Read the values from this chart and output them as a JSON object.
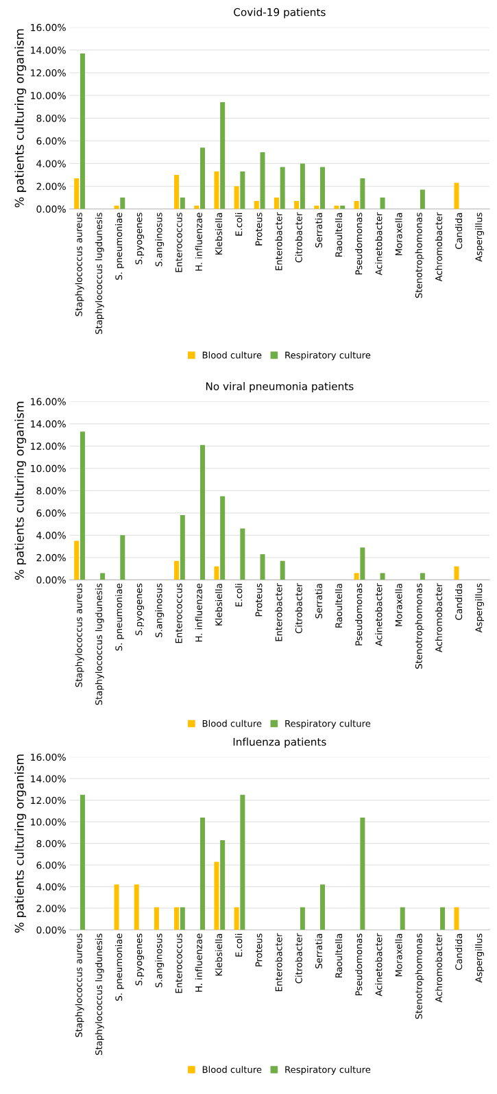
{
  "chart_data": [
    {
      "type": "bar",
      "title": "Covid-19 patients",
      "ylabel": "% patients culturing organism",
      "categories": [
        "Staphylococcus aureus",
        "Staphylococcus lugdunesis",
        "S. pneumoniae",
        "S.pyogenes",
        "S.anginosus",
        "Enterococcus",
        "H. influenzae",
        "Klebsiella",
        "E.coli",
        "Proteus",
        "Enterobacter",
        "Citrobacter",
        "Serratia",
        "Raoultella",
        "Pseudomonas",
        "Acinetobacter",
        "Moraxella",
        "Stenotrophomonas",
        "Achromobacter",
        "Candida",
        "Aspergillus"
      ],
      "series": [
        {
          "name": "Blood culture",
          "color": "#ffc000",
          "values": [
            2.7,
            0,
            0.3,
            0,
            0,
            3.0,
            0.3,
            3.3,
            2.0,
            0.7,
            1.0,
            0.7,
            0.3,
            0.3,
            0.7,
            0,
            0,
            0,
            0,
            2.3,
            0
          ]
        },
        {
          "name": "Respiratory culture",
          "color": "#70ad47",
          "values": [
            13.7,
            0,
            1.0,
            0,
            0,
            1.0,
            5.4,
            9.4,
            3.3,
            5.0,
            3.7,
            4.0,
            3.7,
            0.3,
            2.7,
            1.0,
            0,
            1.7,
            0,
            0,
            0
          ]
        }
      ],
      "ylim": [
        0,
        16
      ],
      "yticks": [
        {
          "value": 0,
          "label": "0.00%"
        },
        {
          "value": 2,
          "label": "2.00%"
        },
        {
          "value": 4,
          "label": "4.00%"
        },
        {
          "value": 6,
          "label": "6.00%"
        },
        {
          "value": 8,
          "label": "8.00%"
        },
        {
          "value": 10,
          "label": "10.00%"
        },
        {
          "value": 12,
          "label": "12.00%"
        },
        {
          "value": 14,
          "label": "14.00%"
        },
        {
          "value": 16,
          "label": "16.00%"
        }
      ],
      "grid": "y",
      "legend": "bottom"
    },
    {
      "type": "bar",
      "title": "No viral pneumonia patients",
      "ylabel": "% patients culturing organism",
      "categories": [
        "Staphylococcus aureus",
        "Staphylococcus lugdunesis",
        "S. pneumoniae",
        "S.pyogenes",
        "S.anginosus",
        "Enterococcus",
        "H. influenzae",
        "Klebsiella",
        "E.coli",
        "Proteus",
        "Enterobacter",
        "Citrobacter",
        "Serratia",
        "Raoultella",
        "Pseudomonas",
        "Acinetobacter",
        "Moraxella",
        "Stenotrophomonas",
        "Achromobacter",
        "Candida",
        "Aspergillus"
      ],
      "series": [
        {
          "name": "Blood culture",
          "color": "#ffc000",
          "values": [
            3.5,
            0,
            0,
            0,
            0,
            1.7,
            0,
            1.2,
            0,
            0,
            0,
            0,
            0,
            0,
            0.6,
            0,
            0,
            0,
            0,
            1.2,
            0
          ]
        },
        {
          "name": "Respiratory culture",
          "color": "#70ad47",
          "values": [
            13.3,
            0.6,
            4.0,
            0,
            0,
            5.8,
            12.1,
            7.5,
            4.6,
            2.3,
            1.7,
            0,
            0,
            0,
            2.9,
            0.6,
            0,
            0.6,
            0,
            0,
            0
          ]
        }
      ],
      "ylim": [
        0,
        16
      ],
      "yticks": [
        {
          "value": 0,
          "label": "0.00%"
        },
        {
          "value": 2,
          "label": "2.00%"
        },
        {
          "value": 4,
          "label": "4.00%"
        },
        {
          "value": 6,
          "label": "6.00%"
        },
        {
          "value": 8,
          "label": "8.00%"
        },
        {
          "value": 10,
          "label": "10.00%"
        },
        {
          "value": 12,
          "label": "12.00%"
        },
        {
          "value": 14,
          "label": "14.00%"
        },
        {
          "value": 16,
          "label": "16.00%"
        }
      ],
      "grid": "y",
      "legend": "bottom"
    },
    {
      "type": "bar",
      "title": "Influenza patients",
      "ylabel": "% patients culturing organism",
      "categories": [
        "Staphylococcus aureus",
        "Staphylococcus lugdunesis",
        "S. pneumoniae",
        "S.pyogenes",
        "S.anginosus",
        "Enterococcus",
        "H. influenzae",
        "Klebsiella",
        "E.coli",
        "Proteus",
        "Enterobacter",
        "Citrobacter",
        "Serratia",
        "Raoultella",
        "Pseudomonas",
        "Acinetobacter",
        "Moraxella",
        "Stenotrophomonas",
        "Achromobacter",
        "Candida",
        "Aspergillus"
      ],
      "series": [
        {
          "name": "Blood culture",
          "color": "#ffc000",
          "values": [
            0,
            0,
            4.2,
            4.2,
            2.1,
            2.1,
            0,
            6.3,
            2.1,
            0,
            0,
            0,
            0,
            0,
            0,
            0,
            0,
            0,
            0,
            2.1,
            0
          ]
        },
        {
          "name": "Respiratory culture",
          "color": "#70ad47",
          "values": [
            12.5,
            0,
            0,
            0,
            0,
            2.1,
            10.4,
            8.3,
            12.5,
            0,
            0,
            2.1,
            4.2,
            0,
            10.4,
            0,
            2.1,
            0,
            2.1,
            0,
            0
          ]
        }
      ],
      "ylim": [
        0,
        16
      ],
      "yticks": [
        {
          "value": 0,
          "label": "0.00%"
        },
        {
          "value": 2,
          "label": "2.00%"
        },
        {
          "value": 4,
          "label": "4.00%"
        },
        {
          "value": 6,
          "label": "6.00%"
        },
        {
          "value": 8,
          "label": "8.00%"
        },
        {
          "value": 10,
          "label": "10.00%"
        },
        {
          "value": 12,
          "label": "12.00%"
        },
        {
          "value": 14,
          "label": "14.00%"
        },
        {
          "value": 16,
          "label": "16.00%"
        }
      ],
      "grid": "y",
      "legend": "bottom"
    }
  ]
}
